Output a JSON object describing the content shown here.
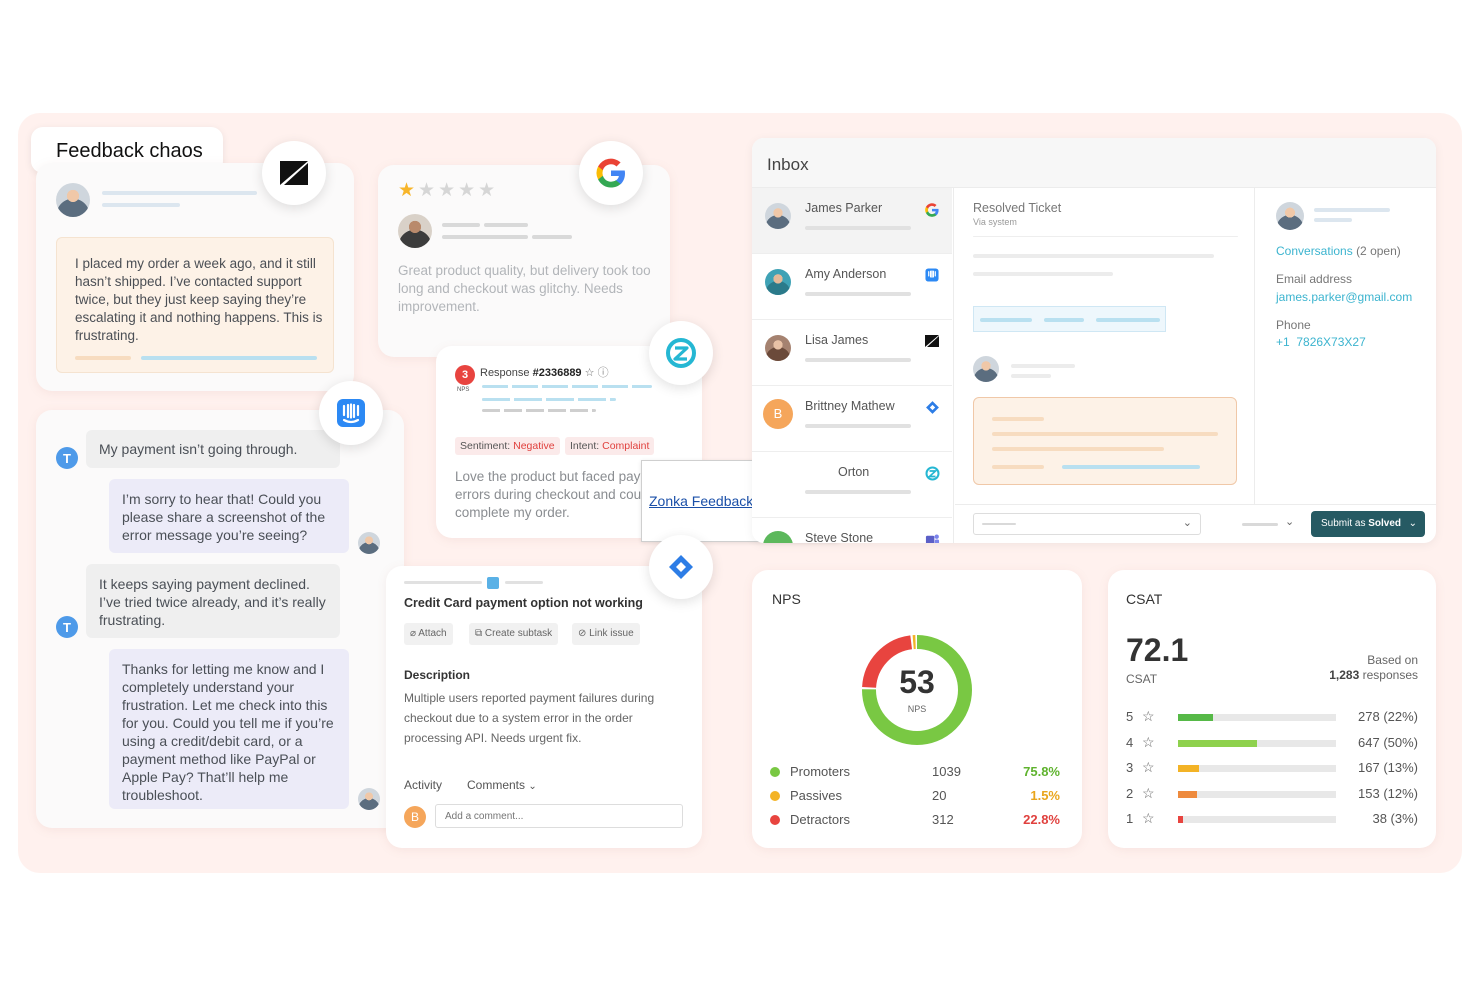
{
  "header": {
    "title": "Feedback chaos"
  },
  "zendesk_card": {
    "message": "I placed my order a week ago, and it still hasn’t shipped. I’ve contacted support twice, but they just keep saying they’re escalating it and nothing happens. This is frustrating."
  },
  "google_card": {
    "rating_stars": 1,
    "message": "Great product quality, but delivery took too long and checkout was glitchy. Needs improvement."
  },
  "chat": {
    "messages": [
      {
        "from": "T",
        "text": "My payment isn’t going through."
      },
      {
        "from": "agent",
        "text": "I’m sorry to hear that! Could you please share a screenshot of the error message you’re seeing?"
      },
      {
        "from": "T",
        "text": "It keeps saying payment declined. I’ve tried twice already, and it’s really frustrating."
      },
      {
        "from": "agent",
        "text": "Thanks for letting me know and I completely understand your frustration. Let me check into this for you. Could you tell me if you’re using a credit/debit card, or a payment method like PayPal or Apple Pay? That’ll help me troubleshoot."
      }
    ]
  },
  "nps_response": {
    "score": "3",
    "score_label": "NPS",
    "title": "Response",
    "id": "#2336889",
    "sentiment_label": "Sentiment:",
    "sentiment": "Negative",
    "intent_label": "Intent:",
    "intent": "Complaint",
    "message": "Love the product but faced payment errors during checkout and couldn’t complete my order."
  },
  "tooltip": {
    "link": "Zonka Feedback"
  },
  "jira": {
    "title": "Credit Card payment option not working",
    "actions": [
      "Attach",
      "Create subtask",
      "Link issue"
    ],
    "description_label": "Description",
    "description": "Multiple users reported payment failures during checkout due to a system error in the order processing API. Needs urgent fix.",
    "activity_label": "Activity",
    "comments_label": "Comments",
    "comment_avatar": "B",
    "comment_placeholder": "Add a comment..."
  },
  "inbox": {
    "title": "Inbox",
    "contacts": [
      {
        "name": "James Parker",
        "source": "google-icon"
      },
      {
        "name": "Amy Anderson",
        "source": "intercom-icon"
      },
      {
        "name": "Lisa James",
        "source": "zendesk-icon"
      },
      {
        "name": "Brittney Mathew",
        "initial": "B",
        "source": "jira-icon"
      },
      {
        "name": "Orton",
        "source": "zonka-icon"
      },
      {
        "name": "Steve Stone",
        "source": "teams-icon"
      }
    ],
    "ticket_title": "Resolved Ticket",
    "ticket_sub": "Via system",
    "conversations_link": "Conversations",
    "conversations_count": "(2 open)",
    "email_label": "Email address",
    "email": "james.parker@gmail.com",
    "phone_label": "Phone",
    "phone": "+1  7826X73X27",
    "submit_label": "Submit as",
    "submit_status": "Solved"
  },
  "nps": {
    "title": "NPS",
    "score": "53",
    "score_label": "NPS",
    "rows": [
      {
        "label": "Promoters",
        "count": "1039",
        "pct": "75.8%",
        "color": "#79c843"
      },
      {
        "label": "Passives",
        "count": "20",
        "pct": "1.5%",
        "color": "#f3b326"
      },
      {
        "label": "Detractors",
        "count": "312",
        "pct": "22.8%",
        "color": "#e8443f"
      }
    ]
  },
  "csat": {
    "title": "CSAT",
    "score": "72.1",
    "score_label": "CSAT",
    "based_on": "Based on",
    "responses": "1,283",
    "responses_label": "responses",
    "rows": [
      {
        "stars": "5",
        "value": "278 (22%)",
        "fraction": 0.22,
        "color": "#56b947"
      },
      {
        "stars": "4",
        "value": "647 (50%)",
        "fraction": 0.5,
        "color": "#8ed14d"
      },
      {
        "stars": "3",
        "value": "167 (13%)",
        "fraction": 0.13,
        "color": "#f3b326"
      },
      {
        "stars": "2",
        "value": "153 (12%)",
        "fraction": 0.12,
        "color": "#ee8a3d"
      },
      {
        "stars": "1",
        "value": "38 (3%)",
        "fraction": 0.03,
        "color": "#e8443f"
      }
    ]
  }
}
